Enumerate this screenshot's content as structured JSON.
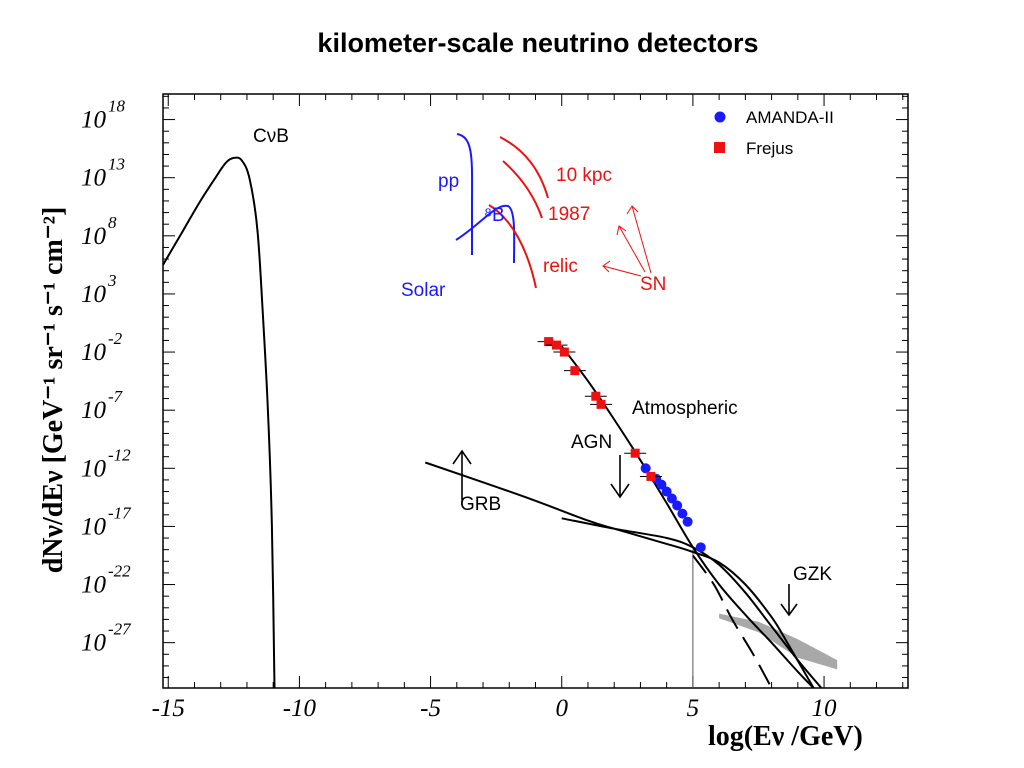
{
  "slide": {
    "title": "kilometer-scale neutrino detectors"
  },
  "chart_data": {
    "type": "line",
    "title": "kilometer-scale neutrino detectors",
    "xlabel": "log(Eν /GeV)",
    "ylabel": "dNν/dEν [GeV⁻¹ sr⁻¹ s⁻¹ cm⁻²]",
    "xlim": [
      -15.2,
      13.2
    ],
    "ylim_log10": [
      -30.9,
      20.2
    ],
    "x_ticks": [
      -15,
      -10,
      -5,
      0,
      5,
      10
    ],
    "x_tick_labels": [
      "-15",
      "-10",
      "-5",
      "0",
      "5",
      "10"
    ],
    "y_ticks_log10": [
      18,
      13,
      8,
      3,
      -2,
      -7,
      -12,
      -17,
      -22,
      -27
    ],
    "y_tick_base": "10",
    "y_tick_exponents": [
      "18",
      "13",
      "8",
      "3",
      "-2",
      "-7",
      "-12",
      "-17",
      "-22",
      "-27"
    ],
    "grid": false,
    "legend_position": "top-right",
    "colors": {
      "curve": "#000000",
      "amanda": "#1a1aff",
      "frejus": "#ee1111",
      "solar": "#1a1aff",
      "sn": "#ee1111",
      "gzk_band": "#a8a8a8"
    },
    "series": [
      {
        "name": "CνB",
        "color": "#000000",
        "points": [
          [
            -15.2,
            5.5
          ],
          [
            -14.5,
            8.2
          ],
          [
            -13.8,
            10.9
          ],
          [
            -13.2,
            13.0
          ],
          [
            -12.8,
            14.3
          ],
          [
            -12.5,
            14.7
          ],
          [
            -12.2,
            14.5
          ],
          [
            -11.9,
            12.9
          ],
          [
            -11.6,
            8.5
          ],
          [
            -11.4,
            1.5
          ],
          [
            -11.2,
            -7.0
          ],
          [
            -11.05,
            -17.0
          ],
          [
            -10.95,
            -30.9
          ]
        ]
      },
      {
        "name": "Atmospheric",
        "color": "#000000",
        "points": [
          [
            0.0,
            -1.5
          ],
          [
            1.0,
            -4.5
          ],
          [
            2.0,
            -7.8
          ],
          [
            3.0,
            -11.3
          ],
          [
            4.0,
            -15.0
          ],
          [
            5.0,
            -18.8
          ],
          [
            6.0,
            -22.0
          ],
          [
            7.0,
            -24.6
          ],
          [
            8.0,
            -27.0
          ],
          [
            9.0,
            -29.5
          ],
          [
            9.6,
            -30.9
          ]
        ]
      },
      {
        "name": "GRB",
        "color": "#000000",
        "points": [
          [
            -5.2,
            -11.5
          ],
          [
            -3.0,
            -13.2
          ],
          [
            -1.0,
            -14.8
          ],
          [
            1.0,
            -16.5
          ],
          [
            2.0,
            -17.2
          ],
          [
            4.0,
            -18.5
          ],
          [
            5.0,
            -19.2
          ],
          [
            6.0,
            -20.1
          ],
          [
            7.0,
            -22.0
          ],
          [
            8.0,
            -24.8
          ],
          [
            8.6,
            -27.0
          ],
          [
            9.6,
            -30.9
          ]
        ]
      },
      {
        "name": "AGN",
        "color": "#000000",
        "points": [
          [
            0.0,
            -16.3
          ],
          [
            2.0,
            -17.2
          ],
          [
            4.0,
            -18.0
          ],
          [
            5.0,
            -18.8
          ],
          [
            6.0,
            -20.3
          ],
          [
            7.0,
            -22.7
          ],
          [
            8.0,
            -25.6
          ],
          [
            9.0,
            -28.5
          ],
          [
            9.9,
            -30.9
          ]
        ]
      },
      {
        "name": "AGN (dashed)",
        "dashed": true,
        "color": "#000000",
        "points": [
          [
            5.0,
            -19.5
          ],
          [
            5.8,
            -22.0
          ],
          [
            6.5,
            -25.0
          ],
          [
            7.3,
            -28.0
          ],
          [
            8.0,
            -30.9
          ]
        ]
      }
    ],
    "vertical_line": {
      "x": 5.0,
      "y_from": -19.0,
      "y_to": -30.9
    },
    "gzk_band": {
      "label": "GZK",
      "upper": [
        [
          6.0,
          -24.5
        ],
        [
          7.5,
          -25.2
        ],
        [
          9.0,
          -26.7
        ],
        [
          10.5,
          -28.5
        ]
      ],
      "lower": [
        [
          10.5,
          -29.3
        ],
        [
          9.0,
          -28.3
        ],
        [
          7.5,
          -26.1
        ],
        [
          6.0,
          -24.9
        ]
      ]
    },
    "markers": [
      {
        "name": "AMANDA-II",
        "shape": "circle",
        "color": "#1a1aff",
        "points": [
          [
            3.2,
            -12.0
          ],
          [
            3.6,
            -12.9
          ],
          [
            3.8,
            -13.4
          ],
          [
            4.0,
            -14.0
          ],
          [
            4.2,
            -14.6
          ],
          [
            4.4,
            -15.2
          ],
          [
            4.6,
            -15.9
          ],
          [
            4.8,
            -16.6
          ],
          [
            5.3,
            -18.8
          ]
        ]
      },
      {
        "name": "Frejus",
        "shape": "square",
        "color": "#ee1111",
        "points": [
          [
            -0.5,
            -1.1
          ],
          [
            -0.2,
            -1.4
          ],
          [
            0.1,
            -2.0
          ],
          [
            0.5,
            -3.6
          ],
          [
            1.3,
            -5.8
          ],
          [
            1.5,
            -6.5
          ],
          [
            2.8,
            -10.7
          ],
          [
            3.4,
            -12.7
          ]
        ]
      }
    ],
    "annotations": [
      {
        "text": "CνB"
      },
      {
        "text": "pp"
      },
      {
        "text": "⁸B"
      },
      {
        "text": "Solar"
      },
      {
        "text": "10 kpc"
      },
      {
        "text": "1987"
      },
      {
        "text": "relic"
      },
      {
        "text": "SN"
      },
      {
        "text": "Atmospheric"
      },
      {
        "text": "AGN"
      },
      {
        "text": "GRB"
      },
      {
        "text": "GZK"
      }
    ]
  }
}
